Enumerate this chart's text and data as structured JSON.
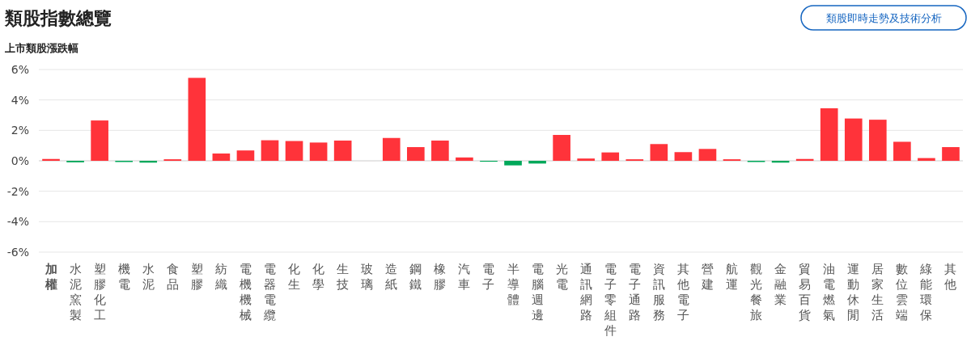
{
  "chart_data": {
    "type": "bar",
    "title": "類股指數總覽",
    "ylabel": "上市類股漲跌幅",
    "annotations": [
      "類股即時走勢及技術分析"
    ],
    "categories": [
      "加權",
      "水泥窯製",
      "塑膠化工",
      "機電",
      "水泥",
      "食品",
      "塑膠",
      "紡織",
      "電機機械",
      "電器電纜",
      "化生",
      "化學",
      "生技",
      "玻璃",
      "造紙",
      "鋼鐵",
      "橡膠",
      "汽車",
      "電子",
      "半導體",
      "電腦週邊",
      "光電",
      "通訊網路",
      "電子零組件",
      "電子通路",
      "資訊服務",
      "其他電子",
      "營建",
      "航運",
      "觀光餐旅",
      "金融業",
      "貿易百貨",
      "油電燃氣",
      "運動休閒",
      "居家生活",
      "數位雲端",
      "綠能環保",
      "其他"
    ],
    "values": [
      0.12,
      -0.1,
      2.65,
      -0.08,
      -0.12,
      0.1,
      5.45,
      0.48,
      0.68,
      1.35,
      1.3,
      1.2,
      1.33,
      0,
      1.5,
      0.9,
      1.33,
      0.22,
      -0.06,
      -0.3,
      -0.18,
      1.7,
      0.15,
      0.55,
      0.1,
      1.1,
      0.57,
      0.78,
      0.1,
      -0.08,
      -0.12,
      0.12,
      3.45,
      2.78,
      2.7,
      1.25,
      0.18,
      0.9
    ],
    "colors": [
      "#ff333a",
      "#00a85a",
      "#ff333a",
      "#00a85a",
      "#00a85a",
      "#ff333a",
      "#ff333a",
      "#ff333a",
      "#ff333a",
      "#ff333a",
      "#ff333a",
      "#ff333a",
      "#ff333a",
      "#ff333a",
      "#ff333a",
      "#ff333a",
      "#ff333a",
      "#ff333a",
      "#00a85a",
      "#00a85a",
      "#00a85a",
      "#ff333a",
      "#ff333a",
      "#ff333a",
      "#ff333a",
      "#ff333a",
      "#ff333a",
      "#ff333a",
      "#ff333a",
      "#00a85a",
      "#00a85a",
      "#ff333a",
      "#ff333a",
      "#ff333a",
      "#ff333a",
      "#ff333a",
      "#ff333a",
      "#ff333a"
    ],
    "ylim": [
      -6,
      6
    ],
    "yticks": [
      {
        "value": 6,
        "label": "6%"
      },
      {
        "value": 4,
        "label": "4%"
      },
      {
        "value": 2,
        "label": "2%"
      },
      {
        "value": 0,
        "label": "0%"
      },
      {
        "value": -2,
        "label": "-2%"
      },
      {
        "value": -4,
        "label": "-4%"
      },
      {
        "value": -6,
        "label": "-6%"
      }
    ],
    "grid": "y"
  }
}
